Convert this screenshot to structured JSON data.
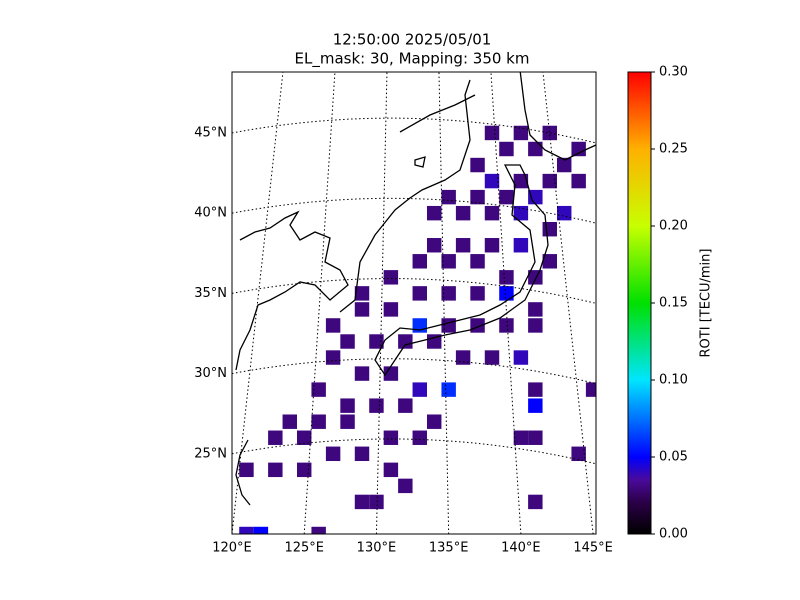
{
  "chart_data": {
    "type": "map",
    "title": "12:50:00 2025/05/01",
    "subtitle": "EL_mask: 30, Mapping: 350 km",
    "xlim": [
      120,
      145.2
    ],
    "ylim": [
      20,
      48.8
    ],
    "xticks": [
      {
        "value": 120,
        "label": "120°E"
      },
      {
        "value": 125,
        "label": "125°E"
      },
      {
        "value": 130,
        "label": "130°E"
      },
      {
        "value": 135,
        "label": "135°E"
      },
      {
        "value": 140,
        "label": "140°E"
      },
      {
        "value": 145,
        "label": "145°E"
      }
    ],
    "yticks": [
      {
        "value": 25,
        "label": "25°N"
      },
      {
        "value": 30,
        "label": "30°N"
      },
      {
        "value": 35,
        "label": "35°N"
      },
      {
        "value": 40,
        "label": "40°N"
      },
      {
        "value": 45,
        "label": "45°N"
      }
    ],
    "colorbar_label": "ROTI [TECU/min]",
    "clim": [
      0,
      0.3
    ],
    "cticks": [
      {
        "value": 0,
        "label": "0.00"
      },
      {
        "value": 0.05,
        "label": "0.05"
      },
      {
        "value": 0.1,
        "label": "0.10"
      },
      {
        "value": 0.15,
        "label": "0.15"
      },
      {
        "value": 0.2,
        "label": "0.20"
      },
      {
        "value": 0.25,
        "label": "0.25"
      },
      {
        "value": 0.3,
        "label": "0.30"
      }
    ],
    "colormap": [
      [
        0,
        "#000000"
      ],
      [
        0.02,
        "#2a0045"
      ],
      [
        0.035,
        "#4a0a9a"
      ],
      [
        0.05,
        "#0000ff"
      ],
      [
        0.1,
        "#00e5ff"
      ],
      [
        0.15,
        "#00e000"
      ],
      [
        0.2,
        "#c8ff00"
      ],
      [
        0.25,
        "#ffb000"
      ],
      [
        0.3,
        "#ff0000"
      ]
    ],
    "cells": [
      [
        138,
        45,
        0.03
      ],
      [
        140,
        45,
        0.03
      ],
      [
        142,
        45,
        0.03
      ],
      [
        144,
        44,
        0.03
      ],
      [
        139,
        44,
        0.03
      ],
      [
        141,
        44,
        0.03
      ],
      [
        143,
        43,
        0.03
      ],
      [
        137,
        43,
        0.03
      ],
      [
        138,
        42,
        0.04
      ],
      [
        140,
        42,
        0.03
      ],
      [
        142,
        42,
        0.03
      ],
      [
        144,
        42,
        0.03
      ],
      [
        135,
        41,
        0.03
      ],
      [
        137,
        41,
        0.03
      ],
      [
        139,
        41,
        0.03
      ],
      [
        141,
        41,
        0.04
      ],
      [
        143,
        40,
        0.04
      ],
      [
        134,
        40,
        0.03
      ],
      [
        136,
        40,
        0.03
      ],
      [
        138,
        40,
        0.03
      ],
      [
        140,
        40,
        0.04
      ],
      [
        142,
        39,
        0.03
      ],
      [
        134,
        38,
        0.03
      ],
      [
        136,
        38,
        0.03
      ],
      [
        138,
        38,
        0.03
      ],
      [
        140,
        38,
        0.04
      ],
      [
        142,
        37,
        0.03
      ],
      [
        133,
        37,
        0.03
      ],
      [
        135,
        37,
        0.03
      ],
      [
        137,
        37,
        0.03
      ],
      [
        139,
        36,
        0.03
      ],
      [
        141,
        36,
        0.03
      ],
      [
        131,
        36,
        0.03
      ],
      [
        133,
        35,
        0.03
      ],
      [
        135,
        35,
        0.03
      ],
      [
        137,
        35,
        0.03
      ],
      [
        139,
        35,
        0.05
      ],
      [
        141,
        34,
        0.03
      ],
      [
        129,
        35,
        0.03
      ],
      [
        129,
        34,
        0.03
      ],
      [
        131,
        34,
        0.03
      ],
      [
        133,
        33,
        0.06
      ],
      [
        135,
        33,
        0.03
      ],
      [
        137,
        33,
        0.03
      ],
      [
        139,
        33,
        0.03
      ],
      [
        141,
        33,
        0.03
      ],
      [
        127,
        33,
        0.03
      ],
      [
        128,
        32,
        0.03
      ],
      [
        130,
        32,
        0.03
      ],
      [
        132,
        32,
        0.03
      ],
      [
        134,
        32,
        0.03
      ],
      [
        136,
        31,
        0.03
      ],
      [
        138,
        31,
        0.03
      ],
      [
        140,
        31,
        0.04
      ],
      [
        127,
        31,
        0.03
      ],
      [
        129,
        30,
        0.03
      ],
      [
        131,
        30,
        0.03
      ],
      [
        133,
        29,
        0.04
      ],
      [
        135,
        29,
        0.06
      ],
      [
        126,
        29,
        0.03
      ],
      [
        128,
        28,
        0.03
      ],
      [
        130,
        28,
        0.03
      ],
      [
        132,
        28,
        0.03
      ],
      [
        134,
        27,
        0.03
      ],
      [
        124,
        27,
        0.03
      ],
      [
        126,
        27,
        0.03
      ],
      [
        128,
        27,
        0.03
      ],
      [
        131,
        26,
        0.03
      ],
      [
        133,
        26,
        0.03
      ],
      [
        123,
        26,
        0.03
      ],
      [
        125,
        26,
        0.03
      ],
      [
        127,
        25,
        0.03
      ],
      [
        129,
        25,
        0.03
      ],
      [
        131,
        24,
        0.03
      ],
      [
        121,
        24,
        0.03
      ],
      [
        123,
        24,
        0.03
      ],
      [
        125,
        24,
        0.03
      ],
      [
        132,
        23,
        0.03
      ],
      [
        129,
        22,
        0.03
      ],
      [
        130,
        22,
        0.03
      ],
      [
        121,
        20,
        0.04
      ],
      [
        122,
        20,
        0.05
      ],
      [
        126,
        20,
        0.03
      ],
      [
        141,
        28,
        0.05
      ],
      [
        140,
        26,
        0.03
      ],
      [
        141,
        26,
        0.03
      ],
      [
        141,
        22,
        0.03
      ],
      [
        144,
        25,
        0.03
      ],
      [
        145,
        29,
        0.03
      ],
      [
        141,
        29,
        0.03
      ]
    ]
  }
}
